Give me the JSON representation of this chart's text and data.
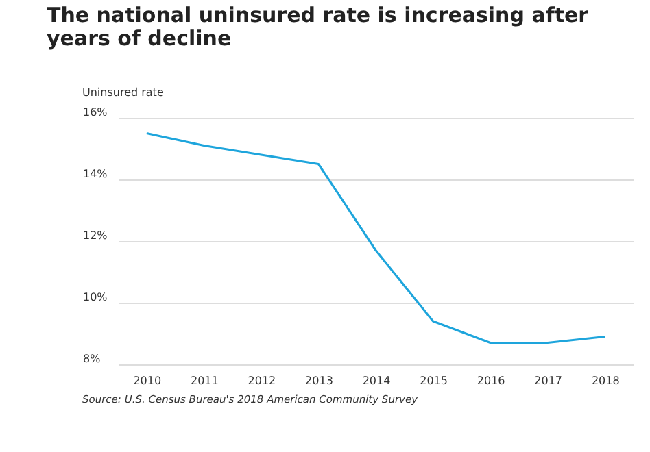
{
  "chart_data": {
    "type": "line",
    "title": "The national uninsured rate is increasing after years of decline",
    "ylabel": "Uninsured rate",
    "categories": [
      "2010",
      "2011",
      "2012",
      "2013",
      "2014",
      "2015",
      "2016",
      "2017",
      "2018"
    ],
    "series": [
      {
        "color": "#1ea5dc",
        "values": [
          15.5,
          15.1,
          14.8,
          14.5,
          11.7,
          9.4,
          8.7,
          8.7,
          8.9
        ]
      }
    ],
    "ylim": [
      8,
      16
    ],
    "yticks": [
      {
        "value": 8,
        "label": "8%"
      },
      {
        "value": 10,
        "label": "10%"
      },
      {
        "value": 12,
        "label": "12%"
      },
      {
        "value": 14,
        "label": "14%"
      },
      {
        "value": 16,
        "label": "16%"
      }
    ],
    "grid": "y",
    "marker": "none",
    "line_style": "solid",
    "annotations": [
      "Source:  U.S. Census Bureau's 2018 American Community Survey"
    ]
  }
}
